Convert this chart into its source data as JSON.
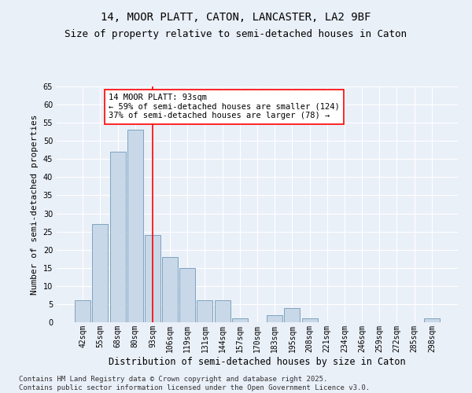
{
  "title1": "14, MOOR PLATT, CATON, LANCASTER, LA2 9BF",
  "title2": "Size of property relative to semi-detached houses in Caton",
  "xlabel": "Distribution of semi-detached houses by size in Caton",
  "ylabel": "Number of semi-detached properties",
  "categories": [
    "42sqm",
    "55sqm",
    "68sqm",
    "80sqm",
    "93sqm",
    "106sqm",
    "119sqm",
    "131sqm",
    "144sqm",
    "157sqm",
    "170sqm",
    "183sqm",
    "195sqm",
    "208sqm",
    "221sqm",
    "234sqm",
    "246sqm",
    "259sqm",
    "272sqm",
    "285sqm",
    "298sqm"
  ],
  "values": [
    6,
    27,
    47,
    53,
    24,
    18,
    15,
    6,
    6,
    1,
    0,
    2,
    4,
    1,
    0,
    0,
    0,
    0,
    0,
    0,
    1
  ],
  "bar_color": "#c8d8e8",
  "bar_edge_color": "#7098b8",
  "vline_x": 4,
  "vline_color": "red",
  "annotation_text": "14 MOOR PLATT: 93sqm\n← 59% of semi-detached houses are smaller (124)\n37% of semi-detached houses are larger (78) →",
  "annotation_box_color": "white",
  "annotation_box_edge_color": "red",
  "ylim": [
    0,
    65
  ],
  "yticks": [
    0,
    5,
    10,
    15,
    20,
    25,
    30,
    35,
    40,
    45,
    50,
    55,
    60,
    65
  ],
  "background_color": "#eaf0f8",
  "plot_background_color": "#eaf0f8",
  "footer_text": "Contains HM Land Registry data © Crown copyright and database right 2025.\nContains public sector information licensed under the Open Government Licence v3.0.",
  "title1_fontsize": 10,
  "title2_fontsize": 9,
  "xlabel_fontsize": 8.5,
  "ylabel_fontsize": 8,
  "tick_fontsize": 7,
  "annotation_fontsize": 7.5,
  "footer_fontsize": 6.5
}
